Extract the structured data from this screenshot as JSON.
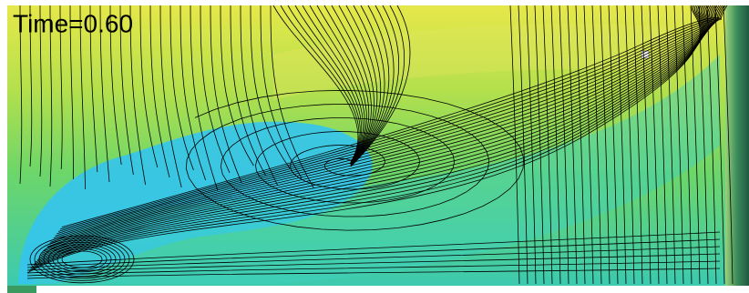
{
  "overlay": {
    "time_label": "Time=0.60"
  }
}
